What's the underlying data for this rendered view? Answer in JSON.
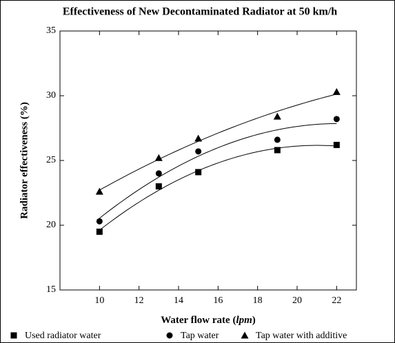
{
  "chart_data": {
    "type": "scatter",
    "title": "Effectiveness of New Decontaminated Radiator at 50 km/h",
    "xlabel": [
      "Water flow rate (",
      "lpm",
      ")"
    ],
    "ylabel": "Radiator effectiveness (%)",
    "xlim": [
      8,
      23
    ],
    "ylim": [
      15,
      35
    ],
    "xticks": [
      10,
      12,
      14,
      16,
      18,
      20,
      22
    ],
    "yticks": [
      15,
      20,
      25,
      30,
      35
    ],
    "fit": "quadratic",
    "legend": "bottom",
    "series": [
      {
        "name": "Used radiator water",
        "color": "#000000",
        "marker": "square",
        "x": [
          10,
          13,
          15,
          19,
          22
        ],
        "values": [
          19.5,
          23.0,
          24.1,
          25.8,
          26.2
        ]
      },
      {
        "name": "Tap water",
        "color": "#000000",
        "marker": "circle",
        "x": [
          10,
          13,
          15,
          19,
          22
        ],
        "values": [
          20.3,
          24.0,
          25.7,
          26.6,
          28.2
        ]
      },
      {
        "name": "Tap water with additive",
        "color": "#000000",
        "marker": "triangle",
        "x": [
          10,
          13,
          15,
          19,
          22
        ],
        "values": [
          22.6,
          25.2,
          26.7,
          28.4,
          30.3
        ]
      }
    ]
  }
}
